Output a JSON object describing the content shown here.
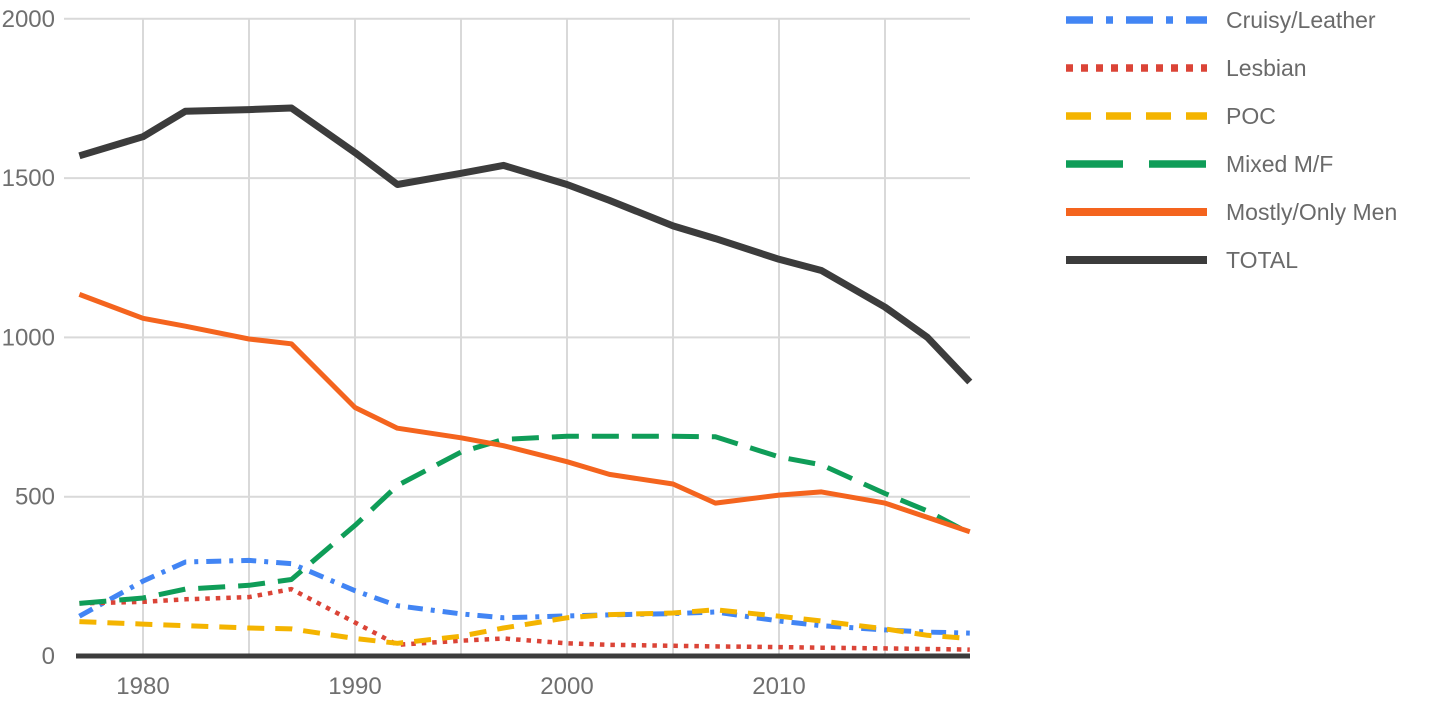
{
  "chart_data": {
    "type": "line",
    "title": "",
    "x": [
      1977,
      1980,
      1982,
      1985,
      1987,
      1990,
      1992,
      1995,
      1997,
      2000,
      2002,
      2005,
      2007,
      2010,
      2012,
      2015,
      2017,
      2019
    ],
    "xlim": [
      1977,
      2019
    ],
    "ylim": [
      0,
      2000
    ],
    "y_ticks": [
      2000,
      1500,
      1000,
      500,
      0
    ],
    "x_tick_labels": [
      "1980",
      "1990",
      "2000",
      "2010"
    ],
    "x_tick_years": [
      1980,
      1990,
      2000,
      2010
    ],
    "x_gridline_years": [
      1980,
      1985,
      1990,
      1995,
      2000,
      2005,
      2010,
      2015
    ],
    "grid": true,
    "legend_position": "top-right",
    "colors": {
      "grid": "#D9D9D9",
      "axis": "#3C3C3C",
      "tick_labels": "#6F6F6F",
      "legend_text": "#6A6A6A",
      "background": "#FFFFFF"
    },
    "series": [
      {
        "name": "Cruisy/Leather",
        "color": "#4285F4",
        "style": "dashdot",
        "values": [
          125,
          235,
          295,
          300,
          290,
          205,
          158,
          132,
          120,
          126,
          129,
          133,
          138,
          110,
          95,
          82,
          75,
          72
        ]
      },
      {
        "name": "Lesbian",
        "color": "#DB4437",
        "style": "dotted",
        "values": [
          165,
          170,
          178,
          185,
          210,
          105,
          35,
          48,
          55,
          40,
          35,
          32,
          30,
          28,
          26,
          24,
          22,
          20
        ]
      },
      {
        "name": "POC",
        "color": "#F4B400",
        "style": "dashed",
        "values": [
          108,
          100,
          95,
          88,
          85,
          55,
          40,
          62,
          88,
          120,
          130,
          135,
          145,
          125,
          110,
          85,
          65,
          55
        ]
      },
      {
        "name": "Mixed M/F",
        "color": "#0F9D58",
        "style": "longdash",
        "values": [
          165,
          182,
          210,
          222,
          240,
          410,
          535,
          640,
          680,
          690,
          690,
          690,
          688,
          625,
          600,
          510,
          455,
          385
        ]
      },
      {
        "name": "Mostly/Only Men",
        "color": "#F4641E",
        "style": "solid",
        "values": [
          1135,
          1060,
          1035,
          995,
          980,
          780,
          715,
          685,
          660,
          610,
          570,
          540,
          480,
          505,
          515,
          480,
          435,
          390
        ]
      },
      {
        "name": "TOTAL",
        "color": "#3C3C3C",
        "style": "solid",
        "values": [
          1570,
          1630,
          1710,
          1715,
          1720,
          1580,
          1480,
          1515,
          1540,
          1480,
          1430,
          1350,
          1310,
          1245,
          1210,
          1095,
          1000,
          860
        ]
      }
    ]
  }
}
